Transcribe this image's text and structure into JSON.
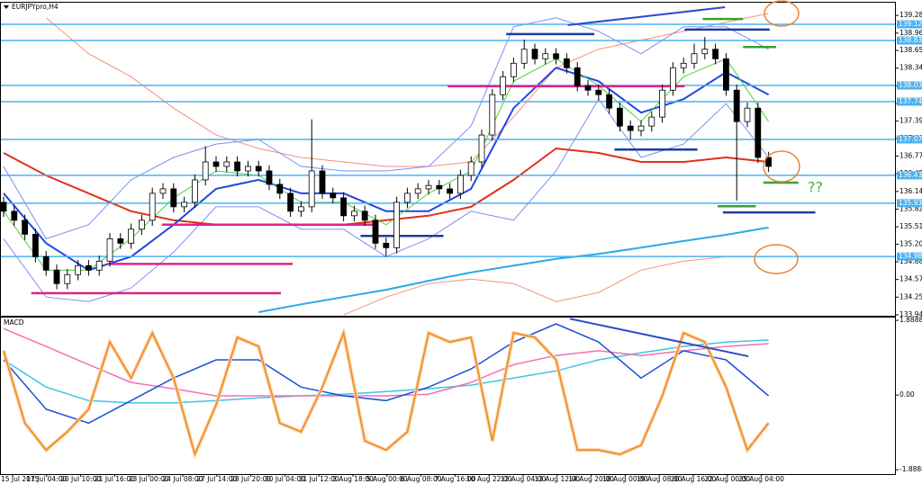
{
  "chart_data": [
    {
      "type": "candlestick",
      "title": "EURJPYpro,H4",
      "annotation": "??",
      "ylim": [
        133.91,
        139.43
      ],
      "yticks": [
        139.283,
        138.968,
        138.658,
        138.343,
        138.028,
        137.713,
        137.398,
        137.088,
        136.773,
        136.458,
        136.143,
        135.828,
        135.513,
        135.203,
        134.888,
        134.573,
        134.258,
        133.943
      ],
      "x_labels": [
        "15 Jul 2015",
        "17 Jul 04:00",
        "20 Jul 10:00",
        "21 Jul 16:00",
        "23 Jul 00:00",
        "24 Jul 08:00",
        "27 Jul 14:00",
        "28 Jul 20:00",
        "30 Jul 04:00",
        "31 Jul 12:00",
        "3 Aug 18:00",
        "5 Aug 00:00",
        "6 Aug 08:00",
        "7 Aug 16:00",
        "10 Aug 22:00",
        "12 Aug 04:00",
        "13 Aug 12:00",
        "14 Aug 20:00",
        "18 Aug 00:00",
        "19 Aug 08:00",
        "20 Aug 16:00",
        "22 Aug 00:00",
        "25 Aug 04:00"
      ],
      "candles": [
        [
          135.95,
          136.05,
          135.69,
          135.79
        ],
        [
          135.79,
          135.89,
          135.53,
          135.63
        ],
        [
          135.63,
          135.73,
          135.28,
          135.38
        ],
        [
          135.38,
          135.48,
          134.88,
          134.98
        ],
        [
          134.98,
          135.08,
          134.64,
          134.74
        ],
        [
          134.74,
          134.84,
          134.4,
          134.5
        ],
        [
          134.5,
          134.76,
          134.4,
          134.66
        ],
        [
          134.66,
          134.92,
          134.56,
          134.82
        ],
        [
          134.82,
          134.92,
          134.64,
          134.74
        ],
        [
          134.74,
          135.0,
          134.64,
          134.9
        ],
        [
          134.9,
          135.4,
          134.8,
          135.3
        ],
        [
          135.3,
          135.4,
          135.12,
          135.22
        ],
        [
          135.22,
          135.57,
          135.12,
          135.47
        ],
        [
          135.47,
          135.73,
          135.37,
          135.63
        ],
        [
          135.63,
          136.21,
          135.53,
          136.11
        ],
        [
          136.11,
          136.29,
          136.01,
          136.19
        ],
        [
          136.19,
          136.29,
          135.77,
          135.87
        ],
        [
          135.87,
          136.05,
          135.77,
          135.95
        ],
        [
          135.95,
          136.45,
          135.85,
          136.35
        ],
        [
          136.35,
          136.95,
          136.25,
          136.67
        ],
        [
          136.67,
          136.77,
          136.49,
          136.59
        ],
        [
          136.59,
          136.77,
          136.49,
          136.67
        ],
        [
          136.67,
          136.77,
          136.41,
          136.51
        ],
        [
          136.51,
          136.69,
          136.41,
          136.59
        ],
        [
          136.59,
          136.69,
          136.41,
          136.51
        ],
        [
          136.51,
          136.61,
          136.17,
          136.27
        ],
        [
          136.27,
          136.37,
          136.01,
          136.11
        ],
        [
          136.11,
          136.21,
          135.69,
          135.79
        ],
        [
          135.79,
          135.97,
          135.69,
          135.87
        ],
        [
          135.87,
          137.43,
          135.77,
          136.51
        ],
        [
          136.51,
          136.61,
          136.01,
          136.11
        ],
        [
          136.11,
          136.21,
          135.93,
          136.03
        ],
        [
          136.03,
          136.13,
          135.61,
          135.71
        ],
        [
          135.71,
          135.89,
          135.61,
          135.79
        ],
        [
          135.79,
          135.89,
          135.53,
          135.63
        ],
        [
          135.63,
          135.73,
          135.12,
          135.22
        ],
        [
          135.22,
          135.32,
          134.98,
          135.14
        ],
        [
          135.14,
          136.05,
          135.04,
          135.95
        ],
        [
          135.95,
          136.21,
          135.85,
          136.11
        ],
        [
          136.11,
          136.29,
          136.01,
          136.19
        ],
        [
          136.19,
          136.35,
          136.09,
          136.25
        ],
        [
          136.25,
          136.35,
          136.09,
          136.19
        ],
        [
          136.19,
          136.29,
          136.01,
          136.11
        ],
        [
          136.11,
          136.53,
          136.01,
          136.43
        ],
        [
          136.43,
          136.77,
          136.33,
          136.67
        ],
        [
          136.67,
          137.25,
          136.57,
          137.15
        ],
        [
          137.15,
          137.97,
          137.05,
          137.87
        ],
        [
          137.87,
          138.29,
          137.77,
          138.19
        ],
        [
          138.19,
          138.53,
          138.09,
          138.43
        ],
        [
          138.43,
          138.85,
          138.33,
          138.68
        ],
        [
          138.68,
          138.78,
          138.41,
          138.51
        ],
        [
          138.51,
          138.7,
          138.41,
          138.6
        ],
        [
          138.6,
          138.7,
          138.41,
          138.51
        ],
        [
          138.51,
          138.61,
          138.25,
          138.35
        ],
        [
          138.35,
          138.45,
          137.93,
          138.03
        ],
        [
          138.03,
          138.13,
          137.85,
          137.95
        ],
        [
          137.95,
          138.05,
          137.77,
          137.87
        ],
        [
          137.87,
          137.97,
          137.53,
          137.63
        ],
        [
          137.63,
          137.73,
          137.21,
          137.31
        ],
        [
          137.31,
          137.41,
          137.07,
          137.23
        ],
        [
          137.23,
          137.41,
          137.13,
          137.31
        ],
        [
          137.31,
          137.57,
          137.21,
          137.47
        ],
        [
          137.47,
          138.05,
          137.37,
          137.95
        ],
        [
          137.95,
          138.45,
          137.85,
          138.35
        ],
        [
          138.35,
          138.53,
          138.25,
          138.43
        ],
        [
          138.43,
          138.78,
          138.33,
          138.6
        ],
        [
          138.6,
          138.9,
          138.5,
          138.68
        ],
        [
          138.68,
          138.78,
          138.41,
          138.51
        ],
        [
          138.51,
          138.61,
          137.85,
          137.95
        ],
        [
          137.95,
          138.05,
          135.98,
          137.39
        ],
        [
          137.39,
          137.73,
          137.29,
          137.63
        ],
        [
          137.63,
          137.73,
          136.65,
          136.75
        ],
        [
          136.75,
          136.85,
          136.49,
          136.59
        ]
      ],
      "x": [
        0,
        4,
        8,
        12,
        16,
        20,
        24,
        28,
        32,
        36,
        40,
        44,
        48,
        52,
        56,
        60,
        64,
        68,
        72
      ],
      "series": [
        {
          "color": "#f4907c",
          "line": "thin",
          "values": [
            null,
            139.24,
            138.6,
            138.19,
            137.63,
            137.15,
            136.91,
            136.75,
            136.67,
            136.59,
            136.59,
            136.67,
            137.47,
            138.35,
            138.68,
            138.84,
            139.0,
            139.16,
            139.32
          ]
        },
        {
          "color": "#f4907c",
          "line": "thin",
          "values": [
            null,
            null,
            null,
            null,
            null,
            null,
            null,
            null,
            133.94,
            134.26,
            134.5,
            134.58,
            134.5,
            134.18,
            134.34,
            134.74,
            134.9,
            134.98,
            134.98
          ]
        },
        {
          "color": "#7d8ff0",
          "line": "thin",
          "values": [
            136.59,
            135.3,
            135.55,
            136.35,
            136.75,
            136.99,
            137.07,
            136.59,
            136.51,
            136.51,
            136.59,
            137.31,
            139.08,
            139.24,
            139.0,
            138.6,
            139.08,
            139.08,
            138.68
          ]
        },
        {
          "color": "#7d8ff0",
          "line": "thin",
          "values": [
            135.3,
            134.26,
            134.18,
            134.42,
            135.06,
            135.87,
            135.87,
            135.47,
            135.47,
            134.98,
            135.3,
            135.79,
            135.63,
            136.51,
            137.79,
            136.75,
            136.99,
            137.71,
            136.75
          ]
        },
        {
          "color": "#2aa8ea",
          "line": "thick",
          "values": [
            null,
            null,
            null,
            null,
            null,
            null,
            133.99,
            134.13,
            134.26,
            134.39,
            134.55,
            134.7,
            134.82,
            134.94,
            135.03,
            135.14,
            135.26,
            135.37,
            135.5
          ]
        },
        {
          "color": "#e0301c",
          "line": "thick",
          "values": [
            136.83,
            136.43,
            136.11,
            135.79,
            135.63,
            135.55,
            135.55,
            135.55,
            135.55,
            135.63,
            135.71,
            135.87,
            136.35,
            136.91,
            136.83,
            136.67,
            136.67,
            136.75,
            136.67
          ]
        },
        {
          "color": "#1f48e0",
          "line": "thick",
          "values": [
            136.11,
            135.22,
            134.74,
            134.98,
            135.55,
            136.19,
            136.35,
            136.11,
            136.11,
            135.79,
            135.79,
            136.19,
            137.63,
            138.35,
            138.11,
            137.55,
            137.79,
            138.27,
            137.87
          ]
        },
        {
          "color": "#4fcf3a",
          "line": "thin",
          "values": [
            135.79,
            134.74,
            134.74,
            135.3,
            136.03,
            136.51,
            136.43,
            135.95,
            135.95,
            135.55,
            136.11,
            136.51,
            138.11,
            138.51,
            138.03,
            137.39,
            138.19,
            138.51,
            137.39
          ]
        }
      ],
      "hlines": [
        139.125,
        138.836,
        138.034,
        137.745,
        137.072,
        136.432,
        135.934,
        134.983
      ],
      "hline_color": "#4bb2f0",
      "levels": [
        {
          "color": "#e0208a",
          "price": 134.33,
          "x": [
            2.6,
            26.1
          ]
        },
        {
          "color": "#e0208a",
          "price": 134.85,
          "x": [
            9.8,
            27.2
          ]
        },
        {
          "color": "#e0208a",
          "price": 135.55,
          "x": [
            14.9,
            35.3
          ]
        },
        {
          "color": "#e0208a",
          "price": 138.02,
          "x": [
            41.8,
            64.1
          ]
        },
        {
          "color": "#1d3aa0",
          "price": 138.95,
          "x": [
            47.3,
            55.6
          ]
        },
        {
          "color": "#1d3aa0",
          "price": 136.89,
          "x": [
            57.5,
            65.3
          ]
        },
        {
          "color": "#1d3aa0",
          "price": 135.35,
          "x": [
            33.6,
            41.4
          ]
        },
        {
          "color": "#1d3aa0",
          "price": 139.03,
          "x": [
            64.1,
            72.1
          ]
        },
        {
          "color": "#1d3aa0",
          "price": 135.77,
          "x": [
            67.7,
            76.4
          ]
        },
        {
          "color": "#3aa030",
          "price": 139.22,
          "x": [
            65.8,
            69.6
          ]
        },
        {
          "color": "#3aa030",
          "price": 138.72,
          "x": [
            69.6,
            72.7
          ]
        },
        {
          "color": "#3aa030",
          "price": 136.3,
          "x": [
            71.5,
            74.8
          ]
        },
        {
          "color": "#3aa030",
          "price": 135.88,
          "x": [
            67.2,
            70.8
          ]
        }
      ],
      "trendlines": [
        {
          "color": "#2a4cc8",
          "x": [
            53.1,
            67.9
          ],
          "y": [
            139.11,
            139.43
          ]
        }
      ]
    },
    {
      "type": "line",
      "title": "MACD",
      "ylim": [
        -2.0,
        1.96
      ],
      "yticks": [
        1.8888,
        {
          "value": 0,
          "label": "0.00"
        },
        -1.8888
      ],
      "x": [
        0,
        4,
        8,
        12,
        16,
        20,
        24,
        28,
        32,
        36,
        40,
        44,
        48,
        52,
        56,
        60,
        64,
        68,
        72
      ],
      "series": [
        {
          "color": "#40c4e4",
          "values": [
            0.89,
            0.2,
            -0.14,
            -0.2,
            -0.2,
            -0.14,
            -0.07,
            -0.02,
            0.02,
            0.09,
            0.16,
            0.25,
            0.43,
            0.61,
            0.89,
            1.07,
            1.23,
            1.34,
            1.39
          ]
        },
        {
          "color": "#f270b4",
          "values": [
            1.68,
            1.23,
            0.77,
            0.32,
            0.16,
            -0.02,
            -0.02,
            -0.02,
            -0.02,
            -0.02,
            0.02,
            0.32,
            0.77,
            1.0,
            1.12,
            1.0,
            1.12,
            1.23,
            1.3
          ]
        },
        {
          "color": "#1e4fd8",
          "values": [
            0.89,
            -0.36,
            -0.71,
            -0.14,
            0.43,
            0.89,
            0.89,
            0.2,
            -0.02,
            -0.14,
            0.2,
            0.66,
            1.34,
            1.8,
            1.34,
            0.43,
            1.12,
            0.89,
            -0.02
          ]
        },
        {
          "color": "#f08a1e",
          "x": [
            0,
            2,
            4,
            6,
            8,
            10,
            12,
            14,
            16,
            18,
            20,
            22,
            24,
            26,
            28,
            30,
            32,
            34,
            36,
            38,
            40,
            42,
            44,
            46,
            48,
            50,
            52,
            54,
            56,
            58,
            60,
            62,
            64,
            66,
            68,
            70,
            72
          ],
          "values": [
            1.12,
            -0.71,
            -1.39,
            -0.93,
            -0.36,
            1.34,
            0.43,
            1.57,
            0.43,
            -1.5,
            -0.25,
            1.46,
            1.23,
            -0.71,
            -0.93,
            0.2,
            1.57,
            -1.16,
            -1.39,
            -0.93,
            1.57,
            1.34,
            1.46,
            -1.16,
            1.57,
            1.46,
            0.89,
            -1.39,
            -1.39,
            -1.5,
            -1.27,
            -0.02,
            1.57,
            1.34,
            0.2,
            -1.39,
            -0.71
          ]
        }
      ],
      "trendlines": [
        {
          "color": "#2a4cc8",
          "x": [
            53.3,
            70.1
          ],
          "y": [
            1.93,
            0.98
          ]
        }
      ]
    }
  ]
}
